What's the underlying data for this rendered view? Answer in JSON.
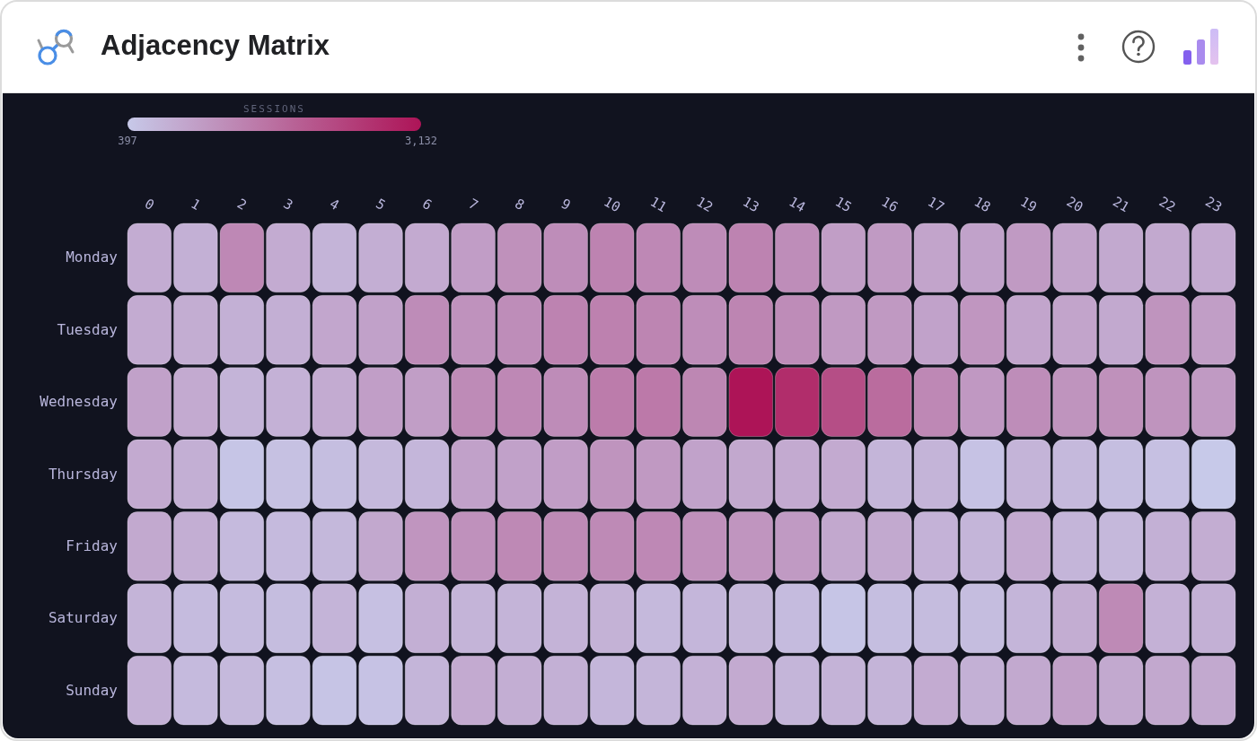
{
  "chart_data": {
    "type": "heatmap",
    "title": "Adjacency Matrix",
    "clabel": "SESSIONS",
    "clim": [
      397,
      3132
    ],
    "cticks": [
      {
        "value": 397,
        "label": "397"
      },
      {
        "value": 3132,
        "label": "3,132"
      }
    ],
    "categories": [
      "0",
      "1",
      "2",
      "3",
      "4",
      "5",
      "6",
      "7",
      "8",
      "9",
      "10",
      "11",
      "12",
      "13",
      "14",
      "15",
      "16",
      "17",
      "18",
      "19",
      "20",
      "21",
      "22",
      "23"
    ],
    "y_categories": [
      "Monday",
      "Tuesday",
      "Wednesday",
      "Thursday",
      "Friday",
      "Saturday",
      "Sunday"
    ],
    "cells": [
      [
        830,
        780,
        1380,
        850,
        720,
        800,
        870,
        1060,
        1250,
        1300,
        1450,
        1380,
        1320,
        1450,
        1300,
        1050,
        1100,
        950,
        980,
        1100,
        950,
        880,
        880,
        860
      ],
      [
        850,
        820,
        780,
        790,
        930,
        1000,
        1320,
        1230,
        1300,
        1450,
        1480,
        1420,
        1300,
        1430,
        1320,
        1120,
        1120,
        980,
        1170,
        940,
        960,
        880,
        1200,
        1050
      ],
      [
        1000,
        870,
        720,
        760,
        850,
        1040,
        1050,
        1330,
        1380,
        1320,
        1560,
        1600,
        1400,
        3132,
        2750,
        2250,
        1800,
        1380,
        1130,
        1300,
        1200,
        1250,
        1200,
        1100
      ],
      [
        870,
        790,
        450,
        520,
        560,
        640,
        680,
        1000,
        1000,
        1060,
        1200,
        1120,
        980,
        900,
        860,
        870,
        700,
        720,
        500,
        720,
        640,
        570,
        530,
        397
      ],
      [
        880,
        800,
        620,
        620,
        660,
        900,
        1180,
        1240,
        1370,
        1350,
        1350,
        1380,
        1260,
        1180,
        1100,
        900,
        880,
        740,
        700,
        870,
        700,
        650,
        780,
        820
      ],
      [
        720,
        610,
        610,
        580,
        720,
        530,
        790,
        720,
        720,
        730,
        750,
        640,
        680,
        690,
        610,
        460,
        570,
        600,
        580,
        700,
        820,
        1350,
        760,
        780
      ],
      [
        760,
        620,
        640,
        550,
        480,
        500,
        700,
        860,
        800,
        770,
        680,
        700,
        760,
        860,
        700,
        730,
        720,
        850,
        780,
        880,
        1020,
        880,
        900,
        880
      ]
    ]
  }
}
